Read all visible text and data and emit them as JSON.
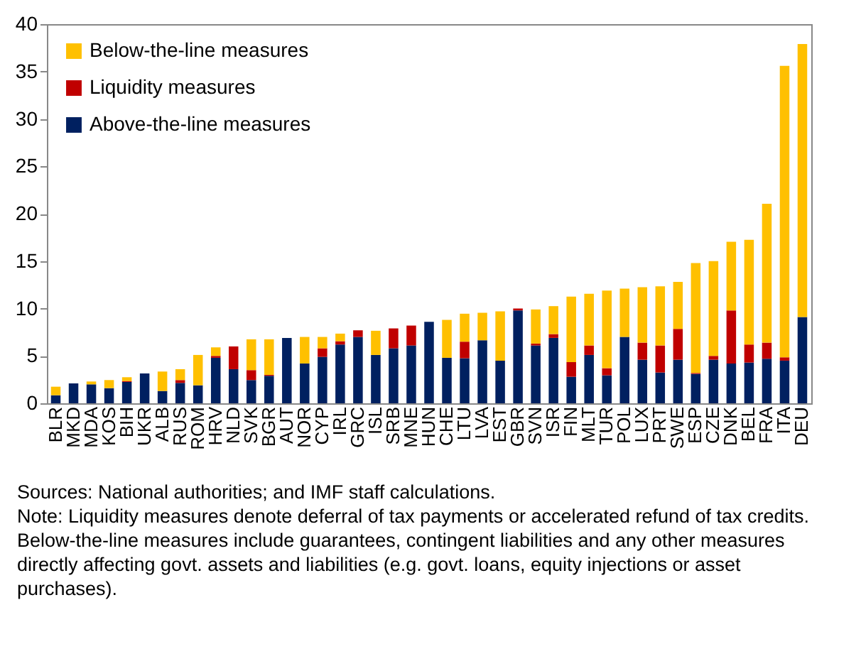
{
  "chart_data": {
    "type": "bar",
    "stacked": true,
    "legend": "top left",
    "grid": false,
    "categories": [
      "BLR",
      "MKD",
      "MDA",
      "KOS",
      "BIH",
      "UKR",
      "ALB",
      "RUS",
      "ROM",
      "HRV",
      "NLD",
      "SVK",
      "BGR",
      "AUT",
      "NOR",
      "CYP",
      "IRL",
      "GRC",
      "ISL",
      "SRB",
      "MNE",
      "HUN",
      "CHE",
      "LTU",
      "LVA",
      "EST",
      "GBR",
      "SVN",
      "ISR",
      "FIN",
      "MLT",
      "TUR",
      "POL",
      "LUX",
      "PRT",
      "SWE",
      "ESP",
      "CZE",
      "DNK",
      "BEL",
      "FRA",
      "ITA",
      "DEU"
    ],
    "series": [
      {
        "name": "Above-the-line measures",
        "color": "#002060",
        "values": [
          0.85,
          2.1,
          2.0,
          1.6,
          2.25,
          3.15,
          1.3,
          2.15,
          1.9,
          4.8,
          3.6,
          2.45,
          2.9,
          6.9,
          4.2,
          4.9,
          6.2,
          7.0,
          5.1,
          5.8,
          6.1,
          8.6,
          4.8,
          4.75,
          6.65,
          4.5,
          9.8,
          6.1,
          6.9,
          2.8,
          5.1,
          2.95,
          7.0,
          4.6,
          3.25,
          4.6,
          3.1,
          4.6,
          4.2,
          4.3,
          4.7,
          4.5,
          9.1
        ]
      },
      {
        "name": "Liquidity measures",
        "color": "#c00000",
        "values": [
          null,
          null,
          null,
          null,
          0.1,
          null,
          null,
          0.3,
          null,
          0.2,
          2.4,
          1.05,
          0.1,
          null,
          null,
          0.9,
          0.35,
          0.7,
          null,
          2.1,
          2.1,
          null,
          null,
          1.75,
          null,
          null,
          0.2,
          0.2,
          0.4,
          1.55,
          1.0,
          0.75,
          null,
          1.8,
          2.85,
          3.25,
          0.1,
          0.4,
          5.6,
          1.9,
          1.7,
          0.35,
          null
        ]
      },
      {
        "name": "Below-the-line measures",
        "color": "#ffc000",
        "values": [
          0.9,
          null,
          0.3,
          0.85,
          0.4,
          null,
          2.05,
          1.15,
          3.2,
          0.9,
          null,
          3.25,
          3.75,
          null,
          2.8,
          1.2,
          0.8,
          null,
          2.55,
          null,
          null,
          null,
          4.0,
          2.95,
          2.9,
          5.2,
          null,
          3.6,
          2.95,
          6.9,
          5.45,
          8.2,
          5.1,
          5.85,
          6.25,
          4.95,
          11.6,
          10.0,
          7.25,
          11.05,
          14.65,
          30.75,
          28.8
        ]
      }
    ],
    "ylim": [
      0,
      40
    ],
    "yticks": [
      0,
      5,
      10,
      15,
      20,
      25,
      30,
      35,
      40
    ],
    "annotations": [
      "Sources: National authorities; and IMF staff calculations.",
      "Note: Liquidity measures denote deferral of tax payments or accelerated refund of tax credits. Below-the-line measures include guarantees, contingent liabilities and any other measures directly affecting govt. assets and liabilities (e.g. govt. loans, equity injections or asset purchases)."
    ]
  }
}
